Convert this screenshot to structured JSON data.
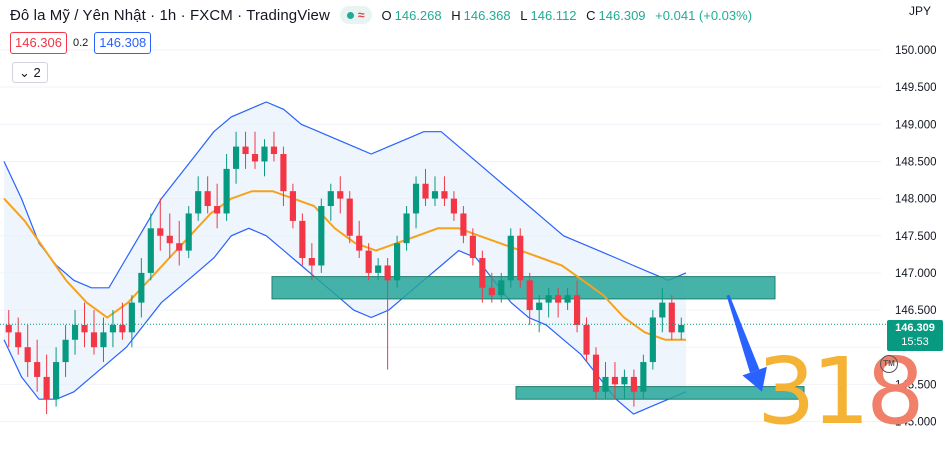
{
  "header": {
    "title": "Đô la Mỹ / Yên Nhật · 1h · FXCM · TradingView",
    "open_label": "O",
    "open": "146.268",
    "high_label": "H",
    "high": "146.368",
    "low_label": "L",
    "low": "146.112",
    "close_label": "C",
    "close": "146.309",
    "change": "+0.041 (+0.03%)",
    "status_icon": "green-dot-icon",
    "wave_icon": "wave-icon"
  },
  "trade": {
    "sell_price": "146.306",
    "spread": "0.2",
    "buy_price": "146.308"
  },
  "indicator_toggle": {
    "icon": "chevron-down-icon",
    "count": "2"
  },
  "axis": {
    "currency": "JPY"
  },
  "last_price": {
    "value": "146.309",
    "countdown": "15:53"
  },
  "watermark": {
    "digits": "31",
    "last_digit": "8",
    "tm": "TM"
  },
  "colors": {
    "up": "#089981",
    "down": "#f23645",
    "band": "#2962ff",
    "band_fill": "#e3eefa",
    "ma": "#f7a21b",
    "zone": "#26a69a",
    "arrow": "#2962ff"
  },
  "chart_data": {
    "type": "candlestick",
    "symbol": "USDJPY",
    "timeframe": "1h",
    "ylim": [
      145.0,
      150.4
    ],
    "y_ticks": [
      "150.000",
      "149.500",
      "149.000",
      "148.500",
      "148.000",
      "147.500",
      "147.000",
      "146.500",
      "146.000",
      "145.500",
      "145.000"
    ],
    "ohlc": [
      [
        146.3,
        146.5,
        146.0,
        146.2
      ],
      [
        146.2,
        146.4,
        145.9,
        146.0
      ],
      [
        146.0,
        146.3,
        145.6,
        145.8
      ],
      [
        145.8,
        146.1,
        145.4,
        145.6
      ],
      [
        145.6,
        145.9,
        145.1,
        145.3
      ],
      [
        145.3,
        146.0,
        145.2,
        145.8
      ],
      [
        145.8,
        146.3,
        145.6,
        146.1
      ],
      [
        146.1,
        146.5,
        145.9,
        146.3
      ],
      [
        146.3,
        146.6,
        146.0,
        146.2
      ],
      [
        146.2,
        146.5,
        145.9,
        146.0
      ],
      [
        146.0,
        146.4,
        145.8,
        146.2
      ],
      [
        146.2,
        146.5,
        146.0,
        146.3
      ],
      [
        146.3,
        146.6,
        146.1,
        146.2
      ],
      [
        146.2,
        146.7,
        146.0,
        146.6
      ],
      [
        146.6,
        147.2,
        146.4,
        147.0
      ],
      [
        147.0,
        147.8,
        146.9,
        147.6
      ],
      [
        147.6,
        148.0,
        147.3,
        147.5
      ],
      [
        147.5,
        147.8,
        147.2,
        147.4
      ],
      [
        147.4,
        147.7,
        147.1,
        147.3
      ],
      [
        147.3,
        147.9,
        147.2,
        147.8
      ],
      [
        147.8,
        148.3,
        147.7,
        148.1
      ],
      [
        148.1,
        148.3,
        147.8,
        147.9
      ],
      [
        147.9,
        148.2,
        147.6,
        147.8
      ],
      [
        147.8,
        148.6,
        147.7,
        148.4
      ],
      [
        148.4,
        148.9,
        148.2,
        148.7
      ],
      [
        148.7,
        148.9,
        148.4,
        148.6
      ],
      [
        148.6,
        148.9,
        148.4,
        148.5
      ],
      [
        148.5,
        148.8,
        148.3,
        148.7
      ],
      [
        148.7,
        148.9,
        148.5,
        148.6
      ],
      [
        148.6,
        148.7,
        147.9,
        148.1
      ],
      [
        148.1,
        148.2,
        147.6,
        147.7
      ],
      [
        147.7,
        147.8,
        147.1,
        147.2
      ],
      [
        147.2,
        147.4,
        146.9,
        147.1
      ],
      [
        147.1,
        148.0,
        147.0,
        147.9
      ],
      [
        147.9,
        148.2,
        147.7,
        148.1
      ],
      [
        148.1,
        148.3,
        147.8,
        148.0
      ],
      [
        148.0,
        148.1,
        147.4,
        147.5
      ],
      [
        147.5,
        147.7,
        147.2,
        147.3
      ],
      [
        147.3,
        147.4,
        146.9,
        147.0
      ],
      [
        147.0,
        147.2,
        146.9,
        147.1
      ],
      [
        147.1,
        147.2,
        145.7,
        146.9
      ],
      [
        146.9,
        147.5,
        146.8,
        147.4
      ],
      [
        147.4,
        147.9,
        147.3,
        147.8
      ],
      [
        147.8,
        148.3,
        147.6,
        148.2
      ],
      [
        148.2,
        148.4,
        147.9,
        148.0
      ],
      [
        148.0,
        148.3,
        147.9,
        148.1
      ],
      [
        148.1,
        148.3,
        147.9,
        148.0
      ],
      [
        148.0,
        148.1,
        147.7,
        147.8
      ],
      [
        147.8,
        147.9,
        147.4,
        147.5
      ],
      [
        147.5,
        147.6,
        147.1,
        147.2
      ],
      [
        147.2,
        147.3,
        146.6,
        146.8
      ],
      [
        146.8,
        147.0,
        146.6,
        146.7
      ],
      [
        146.7,
        147.0,
        146.6,
        146.9
      ],
      [
        146.9,
        147.6,
        146.8,
        147.5
      ],
      [
        147.5,
        147.6,
        146.8,
        146.9
      ],
      [
        146.9,
        147.0,
        146.3,
        146.5
      ],
      [
        146.5,
        146.7,
        146.2,
        146.6
      ],
      [
        146.6,
        146.8,
        146.4,
        146.7
      ],
      [
        146.7,
        146.8,
        146.4,
        146.6
      ],
      [
        146.6,
        146.8,
        146.5,
        146.7
      ],
      [
        146.7,
        146.9,
        146.2,
        146.3
      ],
      [
        146.3,
        146.4,
        145.8,
        145.9
      ],
      [
        145.9,
        146.0,
        145.3,
        145.4
      ],
      [
        145.4,
        145.8,
        145.3,
        145.6
      ],
      [
        145.6,
        145.8,
        145.3,
        145.5
      ],
      [
        145.5,
        145.7,
        145.3,
        145.6
      ],
      [
        145.6,
        145.7,
        145.2,
        145.4
      ],
      [
        145.4,
        145.9,
        145.3,
        145.8
      ],
      [
        145.8,
        146.5,
        145.7,
        146.4
      ],
      [
        146.4,
        146.8,
        146.2,
        146.6
      ],
      [
        146.6,
        146.7,
        146.1,
        146.2
      ],
      [
        146.2,
        146.4,
        146.1,
        146.3
      ]
    ],
    "bb_upper": [
      148.5,
      148.0,
      147.4,
      147.1,
      146.9,
      146.8,
      146.8,
      147.2,
      147.6,
      148.0,
      148.3,
      148.6,
      148.9,
      149.1,
      149.2,
      149.3,
      149.2,
      149.0,
      148.9,
      148.8,
      148.7,
      148.6,
      148.7,
      148.8,
      148.9,
      148.9,
      148.7,
      148.5,
      148.3,
      148.1,
      147.9,
      147.7,
      147.5,
      147.4,
      147.3,
      147.2,
      147.1,
      147.0,
      146.9,
      147.0
    ],
    "bb_lower": [
      146.1,
      145.6,
      145.3,
      145.3,
      145.4,
      145.6,
      145.8,
      146.0,
      146.3,
      146.6,
      146.8,
      147.0,
      147.2,
      147.5,
      147.6,
      147.5,
      147.3,
      147.1,
      146.9,
      146.7,
      146.5,
      146.4,
      146.5,
      146.7,
      146.9,
      147.1,
      147.3,
      147.2,
      146.9,
      146.6,
      146.4,
      146.3,
      146.1,
      145.9,
      145.6,
      145.3,
      145.1,
      145.2,
      145.3,
      145.4
    ],
    "ma": [
      148.0,
      147.7,
      147.3,
      146.9,
      146.6,
      146.4,
      146.6,
      146.9,
      147.2,
      147.5,
      147.8,
      148.0,
      148.1,
      148.1,
      148.0,
      147.9,
      147.6,
      147.4,
      147.3,
      147.4,
      147.5,
      147.6,
      147.6,
      147.5,
      147.4,
      147.3,
      147.2,
      147.1,
      146.9,
      146.7,
      146.4,
      146.2,
      146.1,
      146.1
    ],
    "zones": [
      {
        "from": 146.65,
        "to": 146.95
      },
      {
        "from": 145.3,
        "to": 145.47
      }
    ],
    "last_price": 146.309,
    "projection_arrow": {
      "from": 146.7,
      "to": 145.4
    }
  }
}
